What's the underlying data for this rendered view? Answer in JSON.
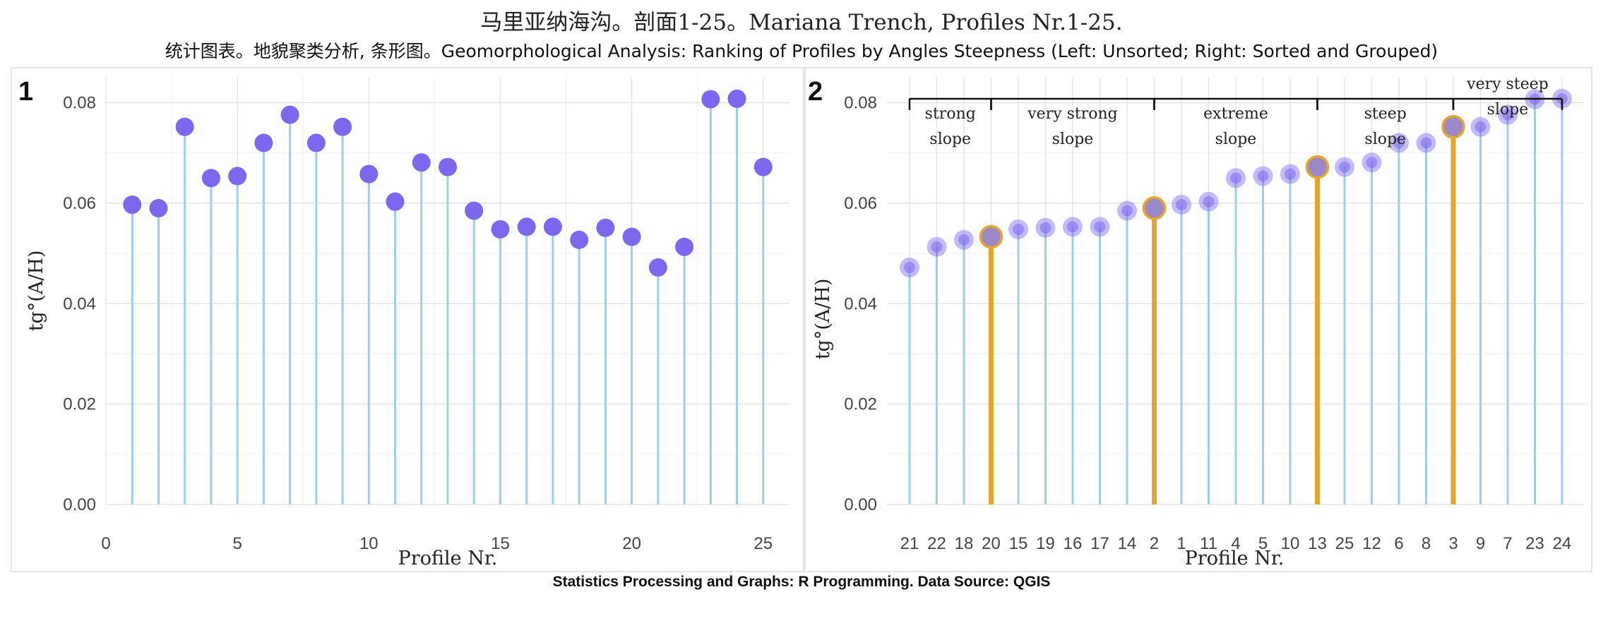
{
  "title": "马里亚纳海沟。剖面1-25。Mariana Trench, Profiles Nr.1-25.",
  "subtitle": "统计图表。地貌聚类分析, 条形图。Geomorphological Analysis: Ranking of Profiles by Angles Steepness (Left: Unsorted; Right: Sorted and Grouped)",
  "caption": "Statistics Processing and Graphs: R Programming. Data Source: QGIS",
  "colors": {
    "stem": "#9ecfe5",
    "point": "#7b68ee",
    "highlight": "#e8a628"
  },
  "chart_data": [
    {
      "type": "lollipop",
      "panel_label": "1",
      "xlabel": "Profile Nr.",
      "ylabel": "tg°(A/H)",
      "xlim": [
        0,
        26
      ],
      "ylim": [
        0,
        0.085
      ],
      "xticks": [
        0,
        5,
        10,
        15,
        20,
        25
      ],
      "yticks": [
        0.0,
        0.02,
        0.04,
        0.06,
        0.08
      ],
      "x": [
        1,
        2,
        3,
        4,
        5,
        6,
        7,
        8,
        9,
        10,
        11,
        12,
        13,
        14,
        15,
        16,
        17,
        18,
        19,
        20,
        21,
        22,
        23,
        24,
        25
      ],
      "values": [
        0.0597,
        0.059,
        0.0752,
        0.065,
        0.0654,
        0.072,
        0.0776,
        0.072,
        0.0752,
        0.0658,
        0.0603,
        0.0681,
        0.0672,
        0.0585,
        0.0548,
        0.0553,
        0.0553,
        0.0527,
        0.0551,
        0.0533,
        0.0472,
        0.0513,
        0.0807,
        0.0808,
        0.0672
      ]
    },
    {
      "type": "lollipop",
      "panel_label": "2",
      "xlabel": "Profile Nr.",
      "ylabel": "tg°(A/H)",
      "ylim": [
        0,
        0.085
      ],
      "yticks": [
        0.0,
        0.02,
        0.04,
        0.06,
        0.08
      ],
      "categories": [
        "21",
        "22",
        "18",
        "20",
        "15",
        "19",
        "16",
        "17",
        "14",
        "2",
        "1",
        "11",
        "4",
        "5",
        "10",
        "13",
        "25",
        "12",
        "6",
        "8",
        "3",
        "9",
        "7",
        "23",
        "24"
      ],
      "values": [
        0.0472,
        0.0513,
        0.0527,
        0.0533,
        0.0548,
        0.0551,
        0.0553,
        0.0553,
        0.0585,
        0.059,
        0.0597,
        0.0603,
        0.065,
        0.0654,
        0.0658,
        0.0672,
        0.0672,
        0.0681,
        0.072,
        0.072,
        0.0752,
        0.0752,
        0.0776,
        0.0807,
        0.0808
      ],
      "highlighted": [
        "20",
        "2",
        "13",
        "3"
      ],
      "groups": [
        {
          "line1": "strong",
          "line2": "slope",
          "from": 0,
          "to": 3
        },
        {
          "line1": "very strong",
          "line2": "slope",
          "from": 3,
          "to": 9
        },
        {
          "line1": "extreme",
          "line2": "slope",
          "from": 9,
          "to": 15
        },
        {
          "line1": "steep",
          "line2": "slope",
          "from": 15,
          "to": 20
        },
        {
          "line1": "very steep",
          "line2": "slope",
          "from": 20,
          "to": 24
        }
      ]
    }
  ]
}
